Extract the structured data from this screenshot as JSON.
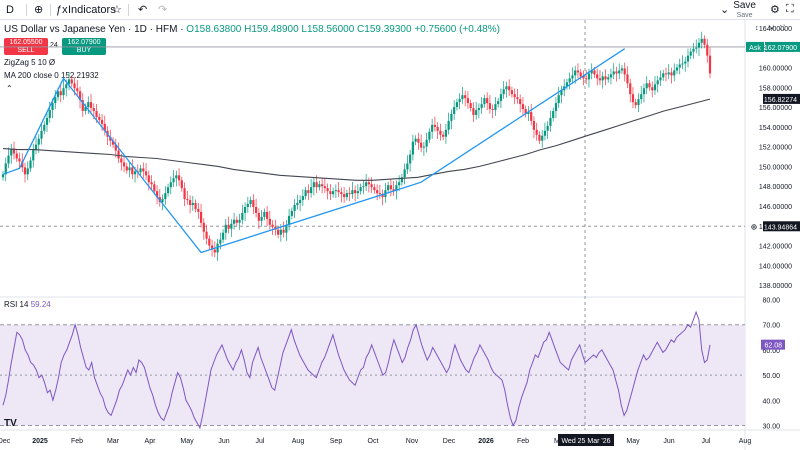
{
  "toolbar": {
    "symbol_short": "D",
    "indicators_label": "Indicators",
    "save_label": "Save",
    "save_sub": "Save"
  },
  "legend": {
    "title": "US Dollar vs Japanese Yen · 1D · HFM",
    "o": "O158.63800",
    "h": "H159.48900",
    "l": "L158.56000",
    "c": "C159.39300",
    "chg": "+0.75600 (+0.48%)"
  },
  "trade": {
    "sell_price": "162.05500",
    "sell_label": "SELL",
    "spread": "24",
    "buy_price": "162.07900",
    "buy_label": "BUY"
  },
  "indicators": {
    "zigzag": "ZigZag 5 10  Ø",
    "ma": "MA 200 close 0",
    "ma_value": "152.21932",
    "rsi": "RSI 14",
    "rsi_value": "59.24"
  },
  "colors": {
    "up": "#089981",
    "down": "#f23645",
    "ma": "#434651",
    "zigzag": "#2196f3",
    "rsi": "#7e57c2",
    "rsi_band": "#ede7f6",
    "ask": "#089981",
    "dark": "#131722"
  },
  "price_labels": {
    "ask_tag": "Ask",
    "ask_value": "162.07900",
    "ma_value": "156.82274",
    "cursor_value": "143.94864",
    "rsi_value": "62.08",
    "crosshair_date": "Wed 25 Mar '26"
  },
  "chart_data": {
    "type": "candlestick",
    "price_axis": {
      "ticks": [
        "164.00000",
        "162.00000",
        "160.00000",
        "158.00000",
        "156.00000",
        "154.00000",
        "152.00000",
        "150.00000",
        "148.00000",
        "146.00000",
        "144.00000",
        "142.00000",
        "140.00000",
        "138.00000"
      ],
      "range": [
        136.8,
        164.8
      ]
    },
    "rsi_axis": {
      "ticks": [
        "80.00",
        "70.00",
        "60.00",
        "50.00",
        "40.00",
        "30.00"
      ],
      "range": [
        28.2,
        80.6
      ],
      "band": [
        30,
        70
      ]
    },
    "x_ticks": [
      "Dec",
      "2025",
      "Feb",
      "Mar",
      "Apr",
      "May",
      "Jun",
      "Jul",
      "Aug",
      "Sep",
      "Oct",
      "Nov",
      "Dec",
      "2026",
      "Feb",
      "Mar",
      "Apr",
      "May",
      "Jun",
      "Jul",
      "Aug"
    ],
    "closes": [
      149.2,
      150.3,
      151.1,
      151.8,
      151.3,
      150.8,
      150.5,
      149.9,
      149.2,
      149.8,
      150.6,
      151.7,
      152.2,
      152.8,
      153.6,
      154.2,
      154.9,
      155.7,
      156.4,
      157.0,
      157.6,
      157.2,
      157.9,
      158.3,
      158.8,
      158.4,
      157.9,
      157.6,
      156.7,
      155.6,
      156.0,
      156.5,
      155.9,
      155.6,
      155.0,
      154.7,
      154.3,
      153.6,
      153.0,
      152.6,
      152.2,
      151.6,
      150.8,
      150.4,
      150.0,
      149.6,
      149.9,
      149.2,
      149.5,
      149.4,
      149.8,
      149.5,
      149.1,
      148.4,
      148.2,
      147.5,
      146.9,
      146.4,
      146.7,
      147.3,
      147.9,
      148.4,
      148.8,
      149.1,
      148.6,
      147.8,
      146.7,
      146.6,
      146.1,
      146.3,
      145.7,
      145.4,
      144.3,
      143.4,
      142.7,
      142.0,
      141.6,
      141.3,
      142.2,
      142.6,
      143.3,
      144.1,
      143.7,
      144.2,
      144.6,
      144.3,
      144.6,
      145.3,
      145.9,
      146.2,
      146.6,
      145.9,
      145.3,
      144.5,
      144.9,
      145.4,
      144.7,
      144.1,
      143.9,
      143.6,
      143.1,
      143.6,
      143.3,
      144.1,
      145.0,
      145.5,
      146.1,
      146.3,
      146.6,
      147.0,
      147.6,
      147.3,
      147.9,
      148.4,
      147.9,
      148.2,
      148.0,
      147.8,
      147.5,
      147.2,
      147.5,
      147.6,
      147.4,
      147.2,
      146.9,
      147.3,
      147.2,
      147.6,
      147.3,
      147.5,
      147.9,
      148.0,
      148.4,
      148.2,
      147.9,
      147.6,
      147.3,
      147.2,
      146.9,
      147.6,
      148.1,
      147.7,
      147.5,
      148.1,
      148.4,
      148.9,
      149.7,
      150.3,
      151.2,
      152.5,
      152.8,
      152.4,
      151.9,
      152.0,
      152.7,
      153.5,
      154.2,
      154.0,
      153.6,
      153.2,
      153.0,
      153.7,
      154.6,
      155.3,
      156.0,
      156.5,
      156.8,
      157.2,
      156.9,
      156.4,
      155.9,
      155.2,
      155.7,
      155.9,
      156.3,
      156.9,
      156.4,
      155.8,
      155.7,
      156.3,
      156.6,
      157.3,
      157.8,
      158.1,
      157.7,
      157.3,
      157.0,
      156.8,
      156.3,
      155.8,
      155.3,
      155.5,
      154.6,
      153.7,
      153.2,
      152.6,
      153.1,
      153.6,
      154.1,
      154.9,
      155.6,
      156.4,
      157.2,
      157.7,
      158.1,
      158.5,
      158.9,
      159.2,
      159.7,
      159.5,
      159.1,
      158.9,
      158.8,
      159.4,
      159.7,
      159.3,
      158.9,
      158.7,
      159.1,
      158.8,
      159.0,
      159.3,
      159.6,
      159.4,
      159.7,
      159.9,
      159.3,
      158.4,
      157.3,
      156.5,
      156.2,
      156.8,
      157.3,
      157.9,
      158.4,
      158.0,
      157.7,
      158.3,
      158.7,
      159.0,
      159.4,
      159.3,
      159.5,
      159.2,
      159.7,
      160.0,
      160.3,
      160.4,
      160.6,
      161.2,
      161.6,
      161.9,
      162.0,
      162.5,
      162.9,
      162.3,
      161.2,
      159.4
    ],
    "ma200": [
      151.8,
      151.7,
      151.7,
      151.6,
      151.5,
      151.4,
      151.3,
      151.2,
      151.0,
      150.9,
      150.8,
      150.6,
      150.4,
      150.2,
      150.0,
      149.7,
      149.5,
      149.3,
      149.1,
      149.0,
      148.9,
      148.8,
      148.7,
      148.6,
      148.6,
      148.7,
      148.8,
      148.9,
      149.2,
      149.5,
      149.7,
      150.0,
      150.4,
      150.8,
      151.2,
      151.7,
      152.1,
      152.6,
      153.1,
      153.6,
      154.1,
      154.6,
      155.1,
      155.6,
      156.0,
      156.4,
      156.8
    ],
    "zigzag": [
      [
        0,
        149.2
      ],
      [
        6,
        149.8
      ],
      [
        22,
        158.9
      ],
      [
        72,
        141.3
      ],
      [
        152,
        148.4
      ],
      [
        226,
        161.9
      ]
    ],
    "rsi": [
      38,
      42,
      48,
      55,
      61,
      67,
      66,
      64,
      60,
      58,
      55,
      54,
      52,
      49,
      50,
      47,
      43,
      44,
      40,
      44,
      49,
      55,
      58,
      60,
      63,
      66,
      70,
      66,
      61,
      57,
      53,
      52,
      55,
      49,
      46,
      43,
      41,
      37,
      35,
      34,
      37,
      40,
      44,
      46,
      49,
      52,
      50,
      53,
      51,
      56,
      55,
      53,
      49,
      45,
      42,
      38,
      35,
      33,
      32,
      35,
      38,
      43,
      47,
      51,
      49,
      45,
      40,
      38,
      36,
      33,
      31,
      29,
      34,
      40,
      46,
      52,
      55,
      58,
      60,
      62,
      59,
      56,
      54,
      52,
      55,
      57,
      60,
      56,
      51,
      49,
      55,
      58,
      61,
      57,
      54,
      51,
      48,
      45,
      44,
      49,
      54,
      59,
      62,
      65,
      68,
      64,
      61,
      58,
      56,
      54,
      52,
      51,
      50,
      49,
      52,
      55,
      57,
      60,
      63,
      66,
      62,
      58,
      55,
      52,
      50,
      48,
      47,
      46,
      49,
      52,
      53,
      57,
      59,
      62,
      59,
      56,
      53,
      50,
      51,
      55,
      60,
      64,
      61,
      58,
      55,
      57,
      61,
      64,
      68,
      70,
      66,
      62,
      59,
      56,
      58,
      61,
      59,
      57,
      55,
      53,
      51,
      53,
      58,
      62,
      59,
      56,
      54,
      52,
      51,
      54,
      57,
      59,
      62,
      60,
      58,
      56,
      53,
      51,
      50,
      49,
      48,
      44,
      38,
      33,
      30,
      32,
      37,
      41,
      44,
      47,
      52,
      55,
      58,
      57,
      60,
      63,
      64,
      67,
      64,
      61,
      58,
      55,
      54,
      53,
      52,
      56,
      58,
      60,
      62,
      58,
      55,
      56,
      57,
      58,
      57,
      59,
      60,
      58,
      56,
      54,
      52,
      48,
      44,
      38,
      34,
      36,
      40,
      44,
      48,
      52,
      55,
      58,
      56,
      57,
      59,
      61,
      63,
      61,
      59,
      60,
      62,
      64,
      63,
      65,
      66,
      67,
      68,
      70,
      69,
      72,
      75,
      72,
      60,
      55,
      56,
      62
    ]
  }
}
